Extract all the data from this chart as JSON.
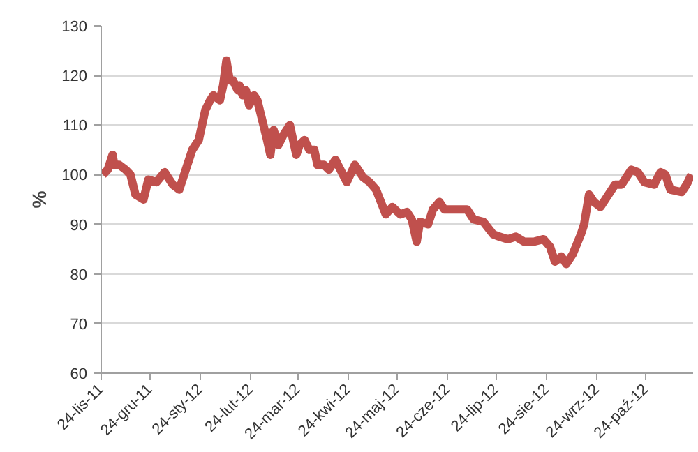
{
  "chart_data": {
    "type": "line",
    "ylabel": "%",
    "x": [
      "2011-11-25",
      "2011-11-28",
      "2011-12-01",
      "2011-12-02",
      "2011-12-05",
      "2011-12-09",
      "2011-12-12",
      "2011-12-15",
      "2011-12-20",
      "2011-12-23",
      "2011-12-28",
      "2012-01-02",
      "2012-01-07",
      "2012-01-11",
      "2012-01-14",
      "2012-01-19",
      "2012-01-23",
      "2012-01-27",
      "2012-01-30",
      "2012-02-01",
      "2012-02-05",
      "2012-02-07",
      "2012-02-09",
      "2012-02-11",
      "2012-02-13",
      "2012-02-16",
      "2012-02-17",
      "2012-02-19",
      "2012-02-21",
      "2012-02-23",
      "2012-02-26",
      "2012-02-28",
      "2012-03-02",
      "2012-03-05",
      "2012-03-07",
      "2012-03-09",
      "2012-03-12",
      "2012-03-15",
      "2012-03-19",
      "2012-03-23",
      "2012-03-25",
      "2012-03-28",
      "2012-03-31",
      "2012-04-03",
      "2012-04-05",
      "2012-04-09",
      "2012-04-12",
      "2012-04-16",
      "2012-04-23",
      "2012-04-28",
      "2012-05-03",
      "2012-05-07",
      "2012-05-11",
      "2012-05-17",
      "2012-05-21",
      "2012-05-26",
      "2012-05-30",
      "2012-06-02",
      "2012-06-05",
      "2012-06-07",
      "2012-06-12",
      "2012-06-15",
      "2012-06-19",
      "2012-06-22",
      "2012-06-26",
      "2012-06-30",
      "2012-07-06",
      "2012-07-10",
      "2012-07-16",
      "2012-07-22",
      "2012-07-26",
      "2012-07-31",
      "2012-08-05",
      "2012-08-10",
      "2012-08-16",
      "2012-08-22",
      "2012-08-26",
      "2012-08-29",
      "2012-09-02",
      "2012-09-05",
      "2012-09-09",
      "2012-09-14",
      "2012-09-16",
      "2012-09-19",
      "2012-09-22",
      "2012-09-26",
      "2012-10-01",
      "2012-10-05",
      "2012-10-09",
      "2012-10-15",
      "2012-10-19",
      "2012-10-23",
      "2012-10-29",
      "2012-11-02",
      "2012-11-05",
      "2012-11-08",
      "2012-11-15",
      "2012-11-18",
      "2012-11-21"
    ],
    "series": [
      {
        "color": "#c0504d",
        "values": [
          100,
          101,
          104,
          102,
          102,
          101,
          100,
          96,
          95,
          99,
          98.5,
          100.5,
          98,
          97,
          100,
          105,
          107,
          113,
          115,
          116,
          115,
          118,
          123,
          119,
          119,
          117,
          118,
          116,
          117,
          114,
          116,
          115,
          111,
          107,
          104,
          109,
          106,
          108,
          110,
          104,
          106,
          107,
          105,
          105,
          102,
          102,
          101,
          103,
          98.5,
          102,
          99.5,
          98.5,
          97,
          92,
          93.5,
          92,
          92.5,
          91,
          86.5,
          90.5,
          90,
          93,
          94.5,
          93,
          93,
          93,
          93,
          91,
          90.5,
          88,
          87.5,
          87,
          87.5,
          86.5,
          86.5,
          87,
          85.5,
          82.5,
          83.5,
          82,
          84,
          88,
          90,
          96,
          94.5,
          93.5,
          96,
          98,
          98,
          101,
          100.5,
          98.5,
          98,
          100.5,
          100,
          97,
          96.5,
          98,
          100
        ]
      }
    ],
    "xlim": [
      "2011-11-24",
      "2012-11-22"
    ],
    "xticks": [
      {
        "value": "2011-11-24",
        "label": "24-lis-11"
      },
      {
        "value": "2011-12-24",
        "label": "24-gru-11"
      },
      {
        "value": "2012-01-24",
        "label": "24-sty-12"
      },
      {
        "value": "2012-02-24",
        "label": "24-lut-12"
      },
      {
        "value": "2012-03-24",
        "label": "24-mar-12"
      },
      {
        "value": "2012-04-24",
        "label": "24-kwi-12"
      },
      {
        "value": "2012-05-24",
        "label": "24-maj-12"
      },
      {
        "value": "2012-06-24",
        "label": "24-cze-12"
      },
      {
        "value": "2012-07-24",
        "label": "24-lip-12"
      },
      {
        "value": "2012-08-24",
        "label": "24-sie-12"
      },
      {
        "value": "2012-09-24",
        "label": "24-wrz-12"
      },
      {
        "value": "2012-10-24",
        "label": "24-paź-12"
      }
    ],
    "ylim": [
      60,
      130
    ],
    "yticks": [
      60,
      70,
      80,
      90,
      100,
      110,
      120,
      130
    ],
    "grid": "y",
    "marker": "none",
    "line_style": "solid"
  }
}
